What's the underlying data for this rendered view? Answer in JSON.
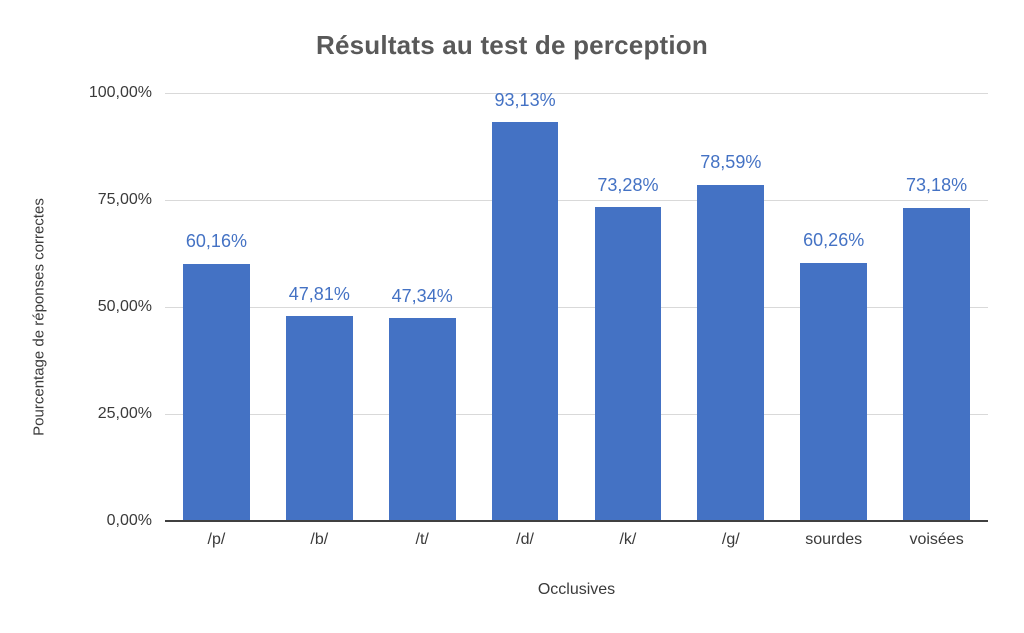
{
  "chart_data": {
    "type": "bar",
    "title": "Résultats au test de perception",
    "xlabel": "Occlusives",
    "ylabel": "Pourcentage de réponses correctes",
    "categories": [
      "/p/",
      "/b/",
      "/t/",
      "/d/",
      "/k/",
      "/g/",
      "sourdes",
      "voisées"
    ],
    "values": [
      60.16,
      47.81,
      47.34,
      93.13,
      73.28,
      78.59,
      60.26,
      73.18
    ],
    "value_labels": [
      "60,16%",
      "47,81%",
      "47,34%",
      "93,13%",
      "73,28%",
      "78,59%",
      "60,26%",
      "73,18%"
    ],
    "ylim": [
      0,
      100
    ],
    "yticks": [
      {
        "value": 100,
        "label": "100,00%"
      },
      {
        "value": 75,
        "label": "75,00%"
      },
      {
        "value": 50,
        "label": "50,00%"
      },
      {
        "value": 25,
        "label": "25,00%"
      },
      {
        "value": 0,
        "label": "0,00%"
      }
    ],
    "grid": true,
    "legend": "none",
    "colors": {
      "bar": "#4472C4",
      "data_label": "#4472C4",
      "title": "#595959",
      "axis_text": "#3a3a3a",
      "gridline": "#d9d9d9",
      "axis_line": "#404040",
      "background": "#ffffff"
    }
  }
}
